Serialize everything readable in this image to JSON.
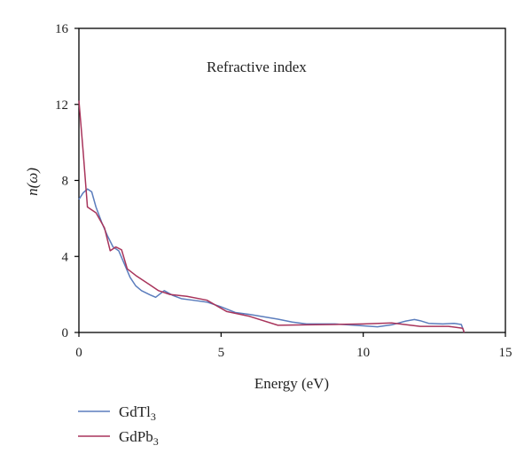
{
  "chart_data": {
    "type": "line",
    "title": "Refractive index",
    "xlabel": "Energy (eV)",
    "ylabel_main": "n(",
    "ylabel_symbol": "ω",
    "ylabel_close": ")",
    "xlim": [
      0,
      15
    ],
    "ylim": [
      0,
      16
    ],
    "x_ticks": [
      0,
      5,
      10,
      15
    ],
    "y_ticks": [
      0,
      4,
      8,
      12,
      16
    ],
    "x_tick_labels": [
      "0",
      "5",
      "10",
      "15"
    ],
    "y_tick_labels": [
      "0",
      "4",
      "8",
      "12",
      "16"
    ],
    "grid": false,
    "legend_position": "bottom-left, below plot",
    "series": [
      {
        "name_base": "GdTl",
        "name_sub": "3",
        "color": "#5b7dbd",
        "points": [
          [
            0.0,
            7.0
          ],
          [
            0.15,
            7.35
          ],
          [
            0.3,
            7.55
          ],
          [
            0.45,
            7.4
          ],
          [
            0.6,
            6.6
          ],
          [
            0.8,
            5.8
          ],
          [
            1.0,
            5.1
          ],
          [
            1.2,
            4.5
          ],
          [
            1.4,
            4.3
          ],
          [
            1.6,
            3.6
          ],
          [
            1.8,
            2.9
          ],
          [
            2.0,
            2.45
          ],
          [
            2.2,
            2.2
          ],
          [
            2.5,
            1.98
          ],
          [
            2.7,
            1.85
          ],
          [
            3.0,
            2.2
          ],
          [
            3.3,
            1.95
          ],
          [
            3.6,
            1.78
          ],
          [
            4.0,
            1.7
          ],
          [
            4.5,
            1.6
          ],
          [
            5.0,
            1.35
          ],
          [
            5.5,
            1.05
          ],
          [
            6.0,
            0.95
          ],
          [
            7.0,
            0.7
          ],
          [
            7.5,
            0.55
          ],
          [
            8.0,
            0.45
          ],
          [
            9.0,
            0.45
          ],
          [
            10.0,
            0.35
          ],
          [
            10.5,
            0.3
          ],
          [
            11.0,
            0.4
          ],
          [
            11.5,
            0.6
          ],
          [
            11.8,
            0.68
          ],
          [
            12.0,
            0.62
          ],
          [
            12.3,
            0.48
          ],
          [
            12.8,
            0.45
          ],
          [
            13.2,
            0.48
          ],
          [
            13.45,
            0.42
          ],
          [
            13.55,
            0.0
          ]
        ]
      },
      {
        "name_base": "GdPb",
        "name_sub": "3",
        "color": "#a8345b",
        "points": [
          [
            0.0,
            12.2
          ],
          [
            0.15,
            9.5
          ],
          [
            0.3,
            6.6
          ],
          [
            0.6,
            6.3
          ],
          [
            0.9,
            5.5
          ],
          [
            1.1,
            4.3
          ],
          [
            1.3,
            4.5
          ],
          [
            1.5,
            4.35
          ],
          [
            1.7,
            3.35
          ],
          [
            2.0,
            3.0
          ],
          [
            2.5,
            2.5
          ],
          [
            2.8,
            2.2
          ],
          [
            3.2,
            2.0
          ],
          [
            3.8,
            1.9
          ],
          [
            4.5,
            1.7
          ],
          [
            5.2,
            1.1
          ],
          [
            6.0,
            0.85
          ],
          [
            7.0,
            0.38
          ],
          [
            8.0,
            0.4
          ],
          [
            9.0,
            0.42
          ],
          [
            10.0,
            0.45
          ],
          [
            11.0,
            0.5
          ],
          [
            12.0,
            0.32
          ],
          [
            13.0,
            0.32
          ],
          [
            13.5,
            0.22
          ],
          [
            13.55,
            0.0
          ]
        ]
      }
    ]
  }
}
